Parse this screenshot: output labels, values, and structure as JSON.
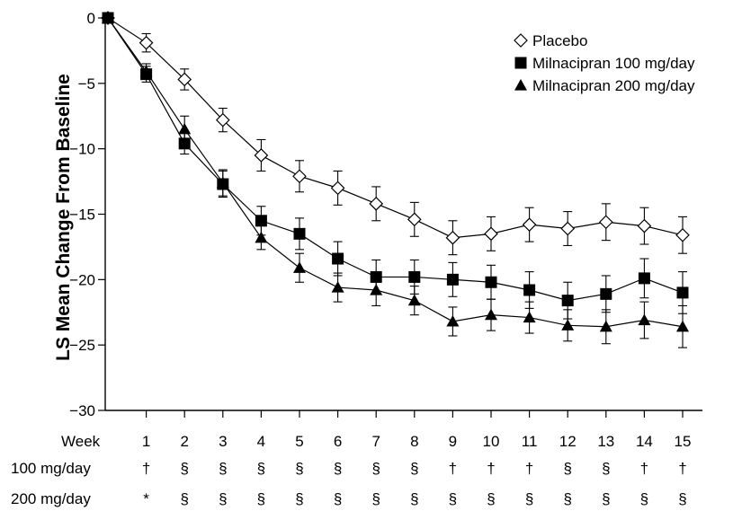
{
  "chart_data": {
    "type": "line",
    "ylabel": "LS Mean Change From Baseline",
    "xlabel": "Week",
    "ylim": [
      -30,
      0
    ],
    "yticks": [
      0,
      -5,
      -10,
      -15,
      -20,
      -25,
      -30
    ],
    "ytick_labels": [
      "0",
      "−5",
      "−10",
      "−15",
      "−20",
      "−25",
      "−30"
    ],
    "x": [
      0,
      1,
      2,
      3,
      4,
      5,
      6,
      7,
      8,
      9,
      10,
      11,
      12,
      13,
      14,
      15
    ],
    "xtick_labels": [
      "1",
      "2",
      "3",
      "4",
      "5",
      "6",
      "7",
      "8",
      "9",
      "10",
      "11",
      "12",
      "13",
      "14",
      "15"
    ],
    "legend_position": "top-right",
    "series": [
      {
        "name": "Placebo",
        "marker": "open-diamond",
        "values": [
          0,
          -1.9,
          -4.7,
          -7.8,
          -10.5,
          -12.1,
          -13.0,
          -14.2,
          -15.4,
          -16.8,
          -16.5,
          -15.8,
          -16.1,
          -15.6,
          -15.9,
          -16.6
        ],
        "errors": [
          0,
          0.7,
          0.8,
          0.9,
          1.2,
          1.2,
          1.3,
          1.3,
          1.3,
          1.3,
          1.3,
          1.3,
          1.3,
          1.4,
          1.4,
          1.4
        ]
      },
      {
        "name": "Milnacipran 100 mg/day",
        "marker": "filled-square",
        "values": [
          0,
          -4.3,
          -9.6,
          -12.7,
          -15.5,
          -16.5,
          -18.4,
          -19.8,
          -19.8,
          -20.0,
          -20.2,
          -20.8,
          -21.6,
          -21.1,
          -19.9,
          -21.0
        ],
        "errors": [
          0,
          0.6,
          0.8,
          1.0,
          1.1,
          1.2,
          1.3,
          1.3,
          1.3,
          1.3,
          1.3,
          1.4,
          1.4,
          1.4,
          1.5,
          1.6
        ]
      },
      {
        "name": "Milnacipran 200 mg/day",
        "marker": "filled-triangle",
        "values": [
          0,
          -4.1,
          -8.5,
          -12.6,
          -16.8,
          -19.1,
          -20.6,
          -20.8,
          -21.6,
          -23.2,
          -22.7,
          -22.9,
          -23.5,
          -23.6,
          -23.1,
          -23.6
        ],
        "errors": [
          0,
          0.6,
          1.0,
          1.0,
          0.9,
          1.1,
          1.1,
          1.2,
          1.1,
          1.1,
          1.2,
          1.2,
          1.2,
          1.3,
          1.4,
          1.6
        ]
      }
    ],
    "significance_rows": [
      {
        "label": "100 mg/day",
        "marks": [
          "†",
          "§",
          "§",
          "§",
          "§",
          "§",
          "§",
          "§",
          "†",
          "†",
          "†",
          "§",
          "§",
          "†",
          "†"
        ]
      },
      {
        "label": "200 mg/day",
        "marks": [
          "*",
          "§",
          "§",
          "§",
          "§",
          "§",
          "§",
          "§",
          "§",
          "§",
          "§",
          "§",
          "§",
          "§",
          "§"
        ]
      }
    ]
  }
}
